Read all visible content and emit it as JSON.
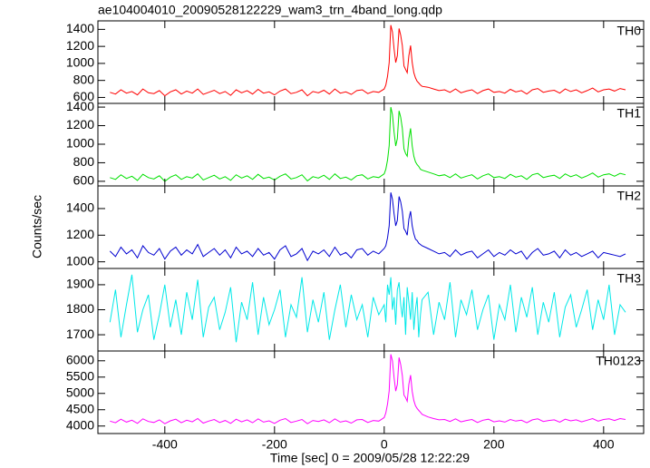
{
  "chart_data": {
    "type": "line",
    "title": "ae104004010_20090528122229_wam3_trn_4band_long.qdp",
    "xlabel": "Time [sec] 0 = 2009/05/28 12:22:29",
    "ylabel": "Counts/sec",
    "xlim": [
      -522,
      473
    ],
    "xticks": [
      -400,
      -200,
      0,
      200,
      400
    ],
    "x": [
      -500,
      -490,
      -480,
      -470,
      -460,
      -450,
      -440,
      -430,
      -420,
      -410,
      -400,
      -390,
      -380,
      -370,
      -360,
      -350,
      -340,
      -330,
      -320,
      -310,
      -300,
      -290,
      -280,
      -270,
      -260,
      -250,
      -240,
      -230,
      -220,
      -210,
      -200,
      -190,
      -180,
      -170,
      -160,
      -150,
      -140,
      -130,
      -120,
      -110,
      -100,
      -90,
      -80,
      -70,
      -60,
      -50,
      -40,
      -30,
      -20,
      -10,
      0,
      3,
      6,
      9,
      12,
      15,
      18,
      21,
      24,
      27,
      30,
      33,
      36,
      39,
      42,
      45,
      48,
      51,
      54,
      57,
      60,
      63,
      66,
      69,
      80,
      90,
      100,
      110,
      120,
      130,
      140,
      150,
      160,
      170,
      180,
      190,
      200,
      210,
      220,
      230,
      240,
      250,
      260,
      270,
      280,
      290,
      300,
      310,
      320,
      330,
      340,
      350,
      360,
      370,
      380,
      390,
      400,
      410,
      420,
      430,
      440
    ],
    "series": [
      {
        "name": "TH0",
        "color": "#ff0000",
        "ylim": [
          530,
          1500
        ],
        "yticks": [
          600,
          800,
          1000,
          1200,
          1400
        ],
        "values": [
          660,
          640,
          690,
          650,
          670,
          630,
          700,
          655,
          645,
          680,
          620,
          665,
          690,
          640,
          675,
          650,
          700,
          635,
          660,
          685,
          645,
          670,
          625,
          690,
          655,
          680,
          640,
          695,
          650,
          665,
          630,
          675,
          700,
          645,
          660,
          690,
          620,
          670,
          655,
          685,
          640,
          700,
          650,
          665,
          635,
          680,
          690,
          645,
          670,
          660,
          700,
          745,
          850,
          1010,
          1450,
          1370,
          1170,
          1010,
          1090,
          1410,
          1330,
          1210,
          970,
          930,
          890,
          1090,
          1210,
          1010,
          890,
          830,
          790,
          770,
          745,
          730,
          720,
          700,
          680,
          690,
          660,
          700,
          655,
          675,
          690,
          645,
          680,
          700,
          660,
          670,
          650,
          695,
          665,
          680,
          640,
          690,
          705,
          660,
          675,
          685,
          650,
          700,
          670,
          690,
          655,
          680,
          710,
          665,
          690,
          700,
          675,
          705,
          690
        ]
      },
      {
        "name": "TH1",
        "color": "#00e000",
        "ylim": [
          550,
          1440
        ],
        "yticks": [
          600,
          800,
          1000,
          1200,
          1400
        ],
        "values": [
          640,
          620,
          670,
          630,
          655,
          610,
          675,
          640,
          625,
          660,
          600,
          645,
          670,
          620,
          650,
          635,
          680,
          615,
          640,
          665,
          625,
          650,
          610,
          670,
          635,
          660,
          620,
          675,
          630,
          645,
          615,
          655,
          680,
          625,
          640,
          670,
          605,
          650,
          635,
          665,
          620,
          680,
          630,
          645,
          615,
          660,
          670,
          625,
          650,
          640,
          680,
          730,
          830,
          985,
          1400,
          1320,
          1130,
          980,
          1060,
          1360,
          1290,
          1170,
          950,
          900,
          870,
          1060,
          1170,
          980,
          870,
          810,
          780,
          760,
          730,
          720,
          700,
          680,
          660,
          670,
          640,
          680,
          635,
          655,
          670,
          625,
          660,
          680,
          640,
          650,
          630,
          675,
          645,
          660,
          620,
          670,
          685,
          640,
          655,
          665,
          630,
          680,
          650,
          670,
          635,
          660,
          690,
          645,
          670,
          680,
          655,
          685,
          670
        ]
      },
      {
        "name": "TH2",
        "color": "#0000d0",
        "ylim": [
          950,
          1570
        ],
        "yticks": [
          1000,
          1200,
          1400
        ],
        "values": [
          1080,
          1040,
          1110,
          1060,
          1090,
          1030,
          1120,
          1070,
          1050,
          1100,
          1020,
          1080,
          1110,
          1050,
          1090,
          1060,
          1130,
          1040,
          1070,
          1100,
          1050,
          1090,
          1030,
          1110,
          1060,
          1080,
          1040,
          1100,
          1050,
          1070,
          1020,
          1090,
          1120,
          1040,
          1060,
          1100,
          1010,
          1080,
          1060,
          1090,
          1040,
          1110,
          1050,
          1070,
          1030,
          1090,
          1100,
          1050,
          1080,
          1060,
          1100,
          1120,
          1180,
          1270,
          1520,
          1470,
          1360,
          1270,
          1310,
          1490,
          1450,
          1380,
          1250,
          1230,
          1200,
          1320,
          1380,
          1270,
          1210,
          1170,
          1160,
          1140,
          1130,
          1120,
          1100,
          1080,
          1060,
          1070,
          1040,
          1090,
          1050,
          1070,
          1080,
          1030,
          1060,
          1090,
          1040,
          1070,
          1050,
          1090,
          1060,
          1080,
          1020,
          1070,
          1100,
          1050,
          1060,
          1080,
          1030,
          1090,
          1050,
          1070,
          1040,
          1060,
          1080,
          1030,
          1070,
          1060,
          1050,
          1040,
          1060
        ]
      },
      {
        "name": "TH3",
        "color": "#00e8e8",
        "ylim": [
          1635,
          1965
        ],
        "yticks": [
          1700,
          1800,
          1900
        ],
        "values": [
          1750,
          1880,
          1690,
          1820,
          1940,
          1710,
          1800,
          1860,
          1680,
          1780,
          1900,
          1730,
          1840,
          1700,
          1870,
          1760,
          1920,
          1690,
          1810,
          1850,
          1720,
          1790,
          1890,
          1670,
          1830,
          1760,
          1910,
          1700,
          1850,
          1740,
          1800,
          1880,
          1690,
          1820,
          1770,
          1930,
          1710,
          1840,
          1750,
          1870,
          1680,
          1800,
          1900,
          1730,
          1860,
          1760,
          1820,
          1690,
          1850,
          1780,
          1820,
          1750,
          1900,
          1860,
          1930,
          1800,
          1850,
          1740,
          1880,
          1910,
          1820,
          1770,
          1850,
          1700,
          1890,
          1830,
          1760,
          1870,
          1720,
          1800,
          1850,
          1690,
          1780,
          1840,
          1870,
          1700,
          1830,
          1760,
          1910,
          1690,
          1840,
          1780,
          1880,
          1720,
          1800,
          1860,
          1680,
          1820,
          1760,
          1900,
          1710,
          1850,
          1770,
          1890,
          1700,
          1830,
          1750,
          1870,
          1690,
          1810,
          1860,
          1730,
          1800,
          1880,
          1720,
          1840,
          1760,
          1900,
          1700,
          1820,
          1790
        ]
      },
      {
        "name": "TH0123",
        "color": "#ff00ff",
        "ylim": [
          3770,
          6300
        ],
        "yticks": [
          4000,
          4500,
          5000,
          5500,
          6000
        ],
        "values": [
          4150,
          4100,
          4210,
          4120,
          4180,
          4080,
          4220,
          4140,
          4110,
          4190,
          4070,
          4160,
          4210,
          4100,
          4180,
          4130,
          4230,
          4090,
          4150,
          4200,
          4110,
          4170,
          4080,
          4210,
          4130,
          4190,
          4100,
          4220,
          4120,
          4160,
          4080,
          4180,
          4230,
          4110,
          4150,
          4200,
          4070,
          4170,
          4140,
          4190,
          4100,
          4220,
          4120,
          4160,
          4090,
          4190,
          4200,
          4110,
          4170,
          4150,
          4260,
          4400,
          4680,
          5080,
          6200,
          6000,
          5480,
          5070,
          5270,
          6100,
          5880,
          5550,
          4950,
          4870,
          4760,
          5280,
          5560,
          5060,
          4780,
          4620,
          4540,
          4480,
          4420,
          4360,
          4280,
          4230,
          4190,
          4200,
          4140,
          4220,
          4130,
          4170,
          4200,
          4110,
          4180,
          4210,
          4130,
          4160,
          4120,
          4200,
          4150,
          4180,
          4100,
          4190,
          4220,
          4140,
          4170,
          4190,
          4120,
          4210,
          4160,
          4190,
          4130,
          4180,
          4230,
          4150,
          4200,
          4220,
          4170,
          4230,
          4200
        ]
      }
    ]
  }
}
